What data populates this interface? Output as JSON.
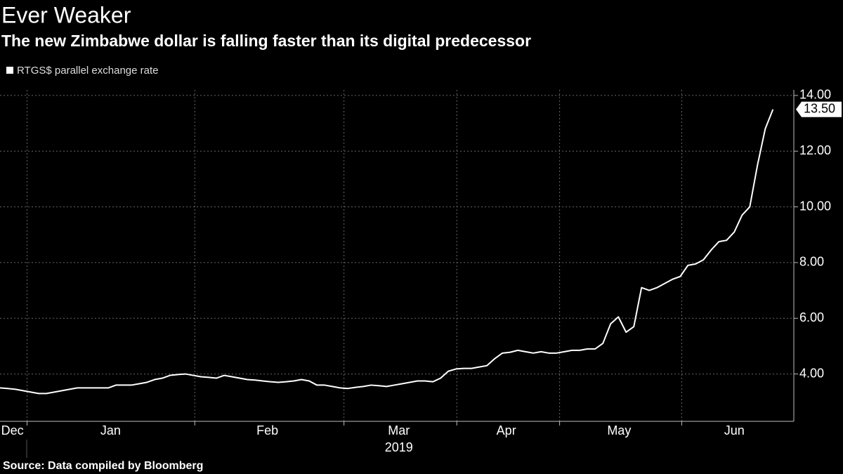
{
  "chart_data": {
    "type": "line",
    "title": "Ever Weaker",
    "subtitle": "The new Zimbabwe dollar is falling faster than its digital predecessor",
    "source": "Source: Data compiled by Bloomberg",
    "series": [
      {
        "name": "RTGS$ parallel exchange rate",
        "color": "#ffffff",
        "values": [
          3.5,
          3.48,
          3.45,
          3.4,
          3.35,
          3.3,
          3.3,
          3.35,
          3.4,
          3.45,
          3.5,
          3.5,
          3.5,
          3.5,
          3.5,
          3.6,
          3.6,
          3.6,
          3.65,
          3.7,
          3.8,
          3.85,
          3.95,
          3.98,
          4.0,
          3.95,
          3.9,
          3.88,
          3.85,
          3.95,
          3.9,
          3.85,
          3.8,
          3.78,
          3.75,
          3.72,
          3.7,
          3.72,
          3.75,
          3.8,
          3.75,
          3.6,
          3.6,
          3.55,
          3.5,
          3.48,
          3.52,
          3.55,
          3.6,
          3.58,
          3.55,
          3.6,
          3.65,
          3.7,
          3.75,
          3.75,
          3.72,
          3.85,
          4.1,
          4.18,
          4.2,
          4.2,
          4.25,
          4.3,
          4.55,
          4.75,
          4.78,
          4.85,
          4.8,
          4.75,
          4.8,
          4.75,
          4.75,
          4.8,
          4.85,
          4.85,
          4.9,
          4.9,
          5.1,
          5.8,
          6.05,
          5.5,
          5.7,
          7.1,
          7.0,
          7.1,
          7.25,
          7.4,
          7.5,
          7.9,
          7.95,
          8.1,
          8.45,
          8.75,
          8.8,
          9.1,
          9.7,
          10.0,
          11.5,
          12.8,
          13.5
        ]
      }
    ],
    "callout": {
      "value": 13.5,
      "label": "13.50"
    },
    "xlim": [
      0,
      102.7
    ],
    "xticks": [
      {
        "value": 1.6,
        "label": "Dec"
      },
      {
        "value": 14.3,
        "label": "Jan"
      },
      {
        "value": 34.6,
        "label": "Feb"
      },
      {
        "value": 51.6,
        "label": "Mar"
      },
      {
        "value": 65.5,
        "label": "Apr"
      },
      {
        "value": 80.1,
        "label": "May"
      },
      {
        "value": 95,
        "label": "Jun"
      }
    ],
    "xgrid": [
      3.5,
      25.2,
      44.5,
      59.1,
      72.4,
      88.2
    ],
    "year_label": {
      "value": 51.6,
      "label": "2019"
    },
    "ylim": [
      2.3,
      14.2
    ],
    "yticks": [
      {
        "value": 4,
        "label": "4.00"
      },
      {
        "value": 6,
        "label": "6.00"
      },
      {
        "value": 8,
        "label": "8.00"
      },
      {
        "value": 10,
        "label": "10.00"
      },
      {
        "value": 12,
        "label": "12.00"
      },
      {
        "value": 14,
        "label": "14.00"
      }
    ],
    "grid": true
  }
}
